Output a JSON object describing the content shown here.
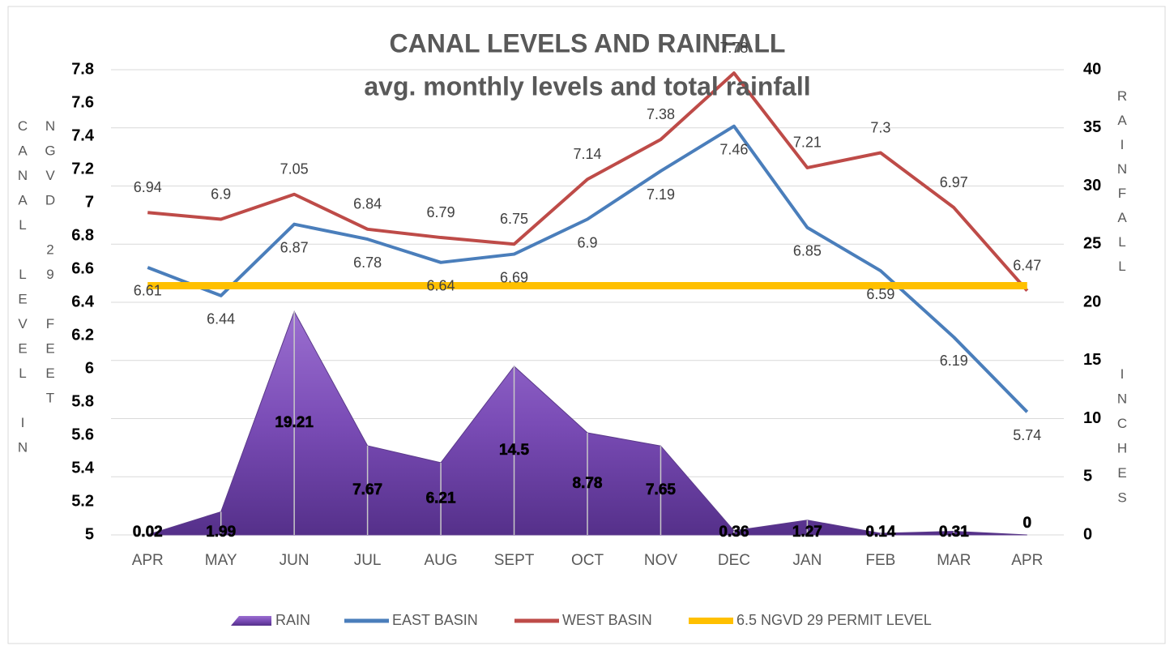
{
  "chart_data": {
    "type": "combo",
    "title": "CANAL LEVELS AND RAINFALL",
    "subtitle": "avg. monthly levels and total rainfall",
    "ylabel": "CANAL LEVEL IN NGVD 29 FEET",
    "y2label": "RAINFALL INCHES",
    "categories": [
      "APR",
      "MAY",
      "JUN",
      "JUL",
      "AUG",
      "SEPT",
      "OCT",
      "NOV",
      "DEC",
      "JAN",
      "FEB",
      "MAR",
      "APR"
    ],
    "ylim": [
      5,
      7.8
    ],
    "yticks": [
      5,
      5.2,
      5.4,
      5.6,
      5.8,
      6,
      6.2,
      6.4,
      6.6,
      6.8,
      7,
      7.2,
      7.4,
      7.6,
      7.8
    ],
    "y2lim": [
      0,
      40
    ],
    "y2ticks": [
      0,
      5,
      10,
      15,
      20,
      25,
      30,
      35,
      40
    ],
    "grid": true,
    "legend": "bottom",
    "series": [
      {
        "name": "RAIN",
        "kind": "area",
        "axis": "y2",
        "color": "#7030a0",
        "values": [
          0.02,
          1.99,
          19.21,
          7.67,
          6.21,
          14.5,
          8.78,
          7.65,
          0.36,
          1.27,
          0.14,
          0.31,
          0
        ]
      },
      {
        "name": "EAST BASIN",
        "kind": "line",
        "color": "#4a7ebb",
        "values": [
          6.61,
          6.44,
          6.87,
          6.78,
          6.64,
          6.69,
          6.9,
          7.19,
          7.46,
          6.85,
          6.59,
          6.19,
          5.74
        ]
      },
      {
        "name": "WEST BASIN",
        "kind": "line",
        "color": "#be4b48",
        "values": [
          6.94,
          6.9,
          7.05,
          6.84,
          6.79,
          6.75,
          7.14,
          7.38,
          7.78,
          7.21,
          7.3,
          6.97,
          6.47
        ]
      },
      {
        "name": "6.5 NGVD 29 PERMIT LEVEL",
        "kind": "line",
        "color": "#ffc000",
        "values": [
          6.5,
          6.5,
          6.5,
          6.5,
          6.5,
          6.5,
          6.5,
          6.5,
          6.5,
          6.5,
          6.5,
          6.5,
          6.5
        ]
      }
    ]
  }
}
